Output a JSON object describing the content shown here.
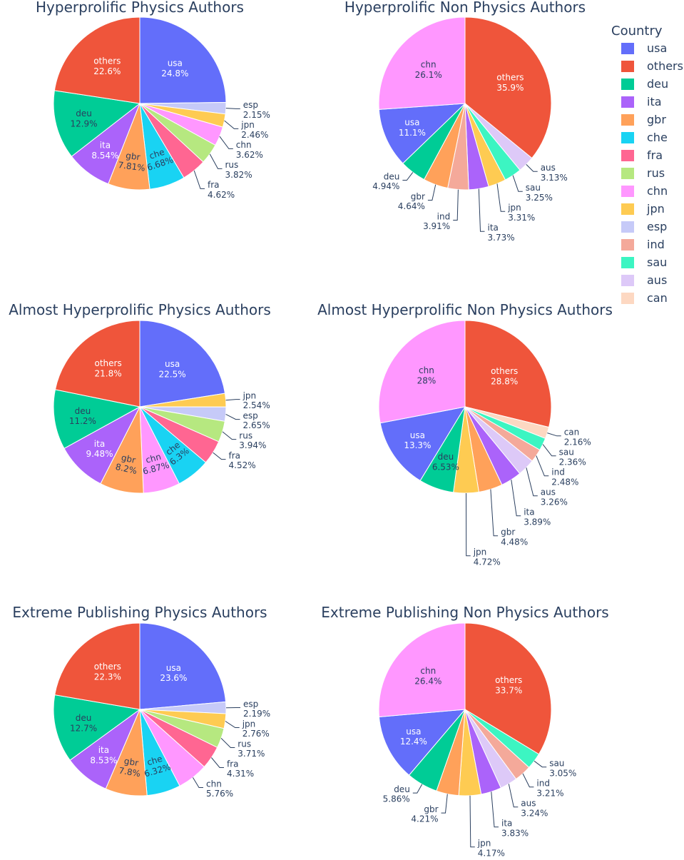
{
  "legend": {
    "title": "Country",
    "items": [
      "usa",
      "others",
      "deu",
      "ita",
      "gbr",
      "che",
      "fra",
      "rus",
      "chn",
      "jpn",
      "esp",
      "ind",
      "sau",
      "aus",
      "can"
    ]
  },
  "colors": {
    "usa": "#636efa",
    "others": "#ef553b",
    "deu": "#00cc96",
    "ita": "#ab63fa",
    "gbr": "#ffa15a",
    "che": "#19d3f3",
    "fra": "#ff6692",
    "rus": "#b6e880",
    "chn": "#ff97ff",
    "jpn": "#fecb52",
    "esp": "#c6caf8",
    "ind": "#f4a99a",
    "sau": "#3cf5c2",
    "aus": "#ddc9f8",
    "can": "#fdd8c2"
  },
  "chart_data": [
    {
      "type": "pie",
      "title": "Hyperprolific Physics Authors",
      "slices": [
        {
          "label": "usa",
          "value": 24.8,
          "text": "24.8%"
        },
        {
          "label": "esp",
          "value": 2.15,
          "text": "2.15%"
        },
        {
          "label": "jpn",
          "value": 2.46,
          "text": "2.46%"
        },
        {
          "label": "chn",
          "value": 3.62,
          "text": "3.62%"
        },
        {
          "label": "rus",
          "value": 3.82,
          "text": "3.82%"
        },
        {
          "label": "fra",
          "value": 4.62,
          "text": "4.62%"
        },
        {
          "label": "che",
          "value": 6.68,
          "text": "6.68%"
        },
        {
          "label": "gbr",
          "value": 7.81,
          "text": "7.81%"
        },
        {
          "label": "ita",
          "value": 8.54,
          "text": "8.54%"
        },
        {
          "label": "deu",
          "value": 12.9,
          "text": "12.9%"
        },
        {
          "label": "others",
          "value": 22.6,
          "text": "22.6%"
        }
      ]
    },
    {
      "type": "pie",
      "title": "Hyperprolific Non Physics Authors",
      "slices": [
        {
          "label": "others",
          "value": 35.9,
          "text": "35.9%"
        },
        {
          "label": "aus",
          "value": 3.13,
          "text": "3.13%"
        },
        {
          "label": "sau",
          "value": 3.25,
          "text": "3.25%"
        },
        {
          "label": "jpn",
          "value": 3.31,
          "text": "3.31%"
        },
        {
          "label": "ita",
          "value": 3.73,
          "text": "3.73%"
        },
        {
          "label": "ind",
          "value": 3.91,
          "text": "3.91%"
        },
        {
          "label": "gbr",
          "value": 4.64,
          "text": "4.64%"
        },
        {
          "label": "deu",
          "value": 4.94,
          "text": "4.94%"
        },
        {
          "label": "usa",
          "value": 11.1,
          "text": "11.1%"
        },
        {
          "label": "chn",
          "value": 26.1,
          "text": "26.1%"
        }
      ]
    },
    {
      "type": "pie",
      "title": "Almost Hyperprolific Physics Authors",
      "slices": [
        {
          "label": "usa",
          "value": 22.5,
          "text": "22.5%"
        },
        {
          "label": "jpn",
          "value": 2.54,
          "text": "2.54%"
        },
        {
          "label": "esp",
          "value": 2.65,
          "text": "2.65%"
        },
        {
          "label": "rus",
          "value": 3.94,
          "text": "3.94%"
        },
        {
          "label": "fra",
          "value": 4.52,
          "text": "4.52%"
        },
        {
          "label": "che",
          "value": 6.3,
          "text": "6.3%"
        },
        {
          "label": "chn",
          "value": 6.87,
          "text": "6.87%"
        },
        {
          "label": "gbr",
          "value": 8.2,
          "text": "8.2%"
        },
        {
          "label": "ita",
          "value": 9.48,
          "text": "9.48%"
        },
        {
          "label": "deu",
          "value": 11.2,
          "text": "11.2%"
        },
        {
          "label": "others",
          "value": 21.8,
          "text": "21.8%"
        }
      ]
    },
    {
      "type": "pie",
      "title": "Almost Hyperprolific Non Physics Authors",
      "slices": [
        {
          "label": "others",
          "value": 28.8,
          "text": "28.8%"
        },
        {
          "label": "can",
          "value": 2.16,
          "text": "2.16%"
        },
        {
          "label": "sau",
          "value": 2.36,
          "text": "2.36%"
        },
        {
          "label": "ind",
          "value": 2.48,
          "text": "2.48%"
        },
        {
          "label": "aus",
          "value": 3.26,
          "text": "3.26%"
        },
        {
          "label": "ita",
          "value": 3.89,
          "text": "3.89%"
        },
        {
          "label": "gbr",
          "value": 4.48,
          "text": "4.48%"
        },
        {
          "label": "jpn",
          "value": 4.72,
          "text": "4.72%"
        },
        {
          "label": "deu",
          "value": 6.53,
          "text": "6.53%"
        },
        {
          "label": "usa",
          "value": 13.3,
          "text": "13.3%"
        },
        {
          "label": "chn",
          "value": 28,
          "text": "28%"
        }
      ]
    },
    {
      "type": "pie",
      "title": "Extreme Publishing Physics Authors",
      "slices": [
        {
          "label": "usa",
          "value": 23.6,
          "text": "23.6%"
        },
        {
          "label": "esp",
          "value": 2.19,
          "text": "2.19%"
        },
        {
          "label": "jpn",
          "value": 2.76,
          "text": "2.76%"
        },
        {
          "label": "rus",
          "value": 3.71,
          "text": "3.71%"
        },
        {
          "label": "fra",
          "value": 4.31,
          "text": "4.31%"
        },
        {
          "label": "chn",
          "value": 5.76,
          "text": "5.76%"
        },
        {
          "label": "che",
          "value": 6.32,
          "text": "6.32%"
        },
        {
          "label": "gbr",
          "value": 7.8,
          "text": "7.8%"
        },
        {
          "label": "ita",
          "value": 8.53,
          "text": "8.53%"
        },
        {
          "label": "deu",
          "value": 12.7,
          "text": "12.7%"
        },
        {
          "label": "others",
          "value": 22.3,
          "text": "22.3%"
        }
      ]
    },
    {
      "type": "pie",
      "title": "Extreme Publishing Non Physics Authors",
      "slices": [
        {
          "label": "others",
          "value": 33.7,
          "text": "33.7%"
        },
        {
          "label": "sau",
          "value": 3.05,
          "text": "3.05%"
        },
        {
          "label": "ind",
          "value": 3.21,
          "text": "3.21%"
        },
        {
          "label": "aus",
          "value": 3.24,
          "text": "3.24%"
        },
        {
          "label": "ita",
          "value": 3.83,
          "text": "3.83%"
        },
        {
          "label": "jpn",
          "value": 4.17,
          "text": "4.17%"
        },
        {
          "label": "gbr",
          "value": 4.21,
          "text": "4.21%"
        },
        {
          "label": "deu",
          "value": 5.86,
          "text": "5.86%"
        },
        {
          "label": "usa",
          "value": 12.4,
          "text": "12.4%"
        },
        {
          "label": "chn",
          "value": 26.4,
          "text": "26.4%"
        }
      ]
    }
  ]
}
